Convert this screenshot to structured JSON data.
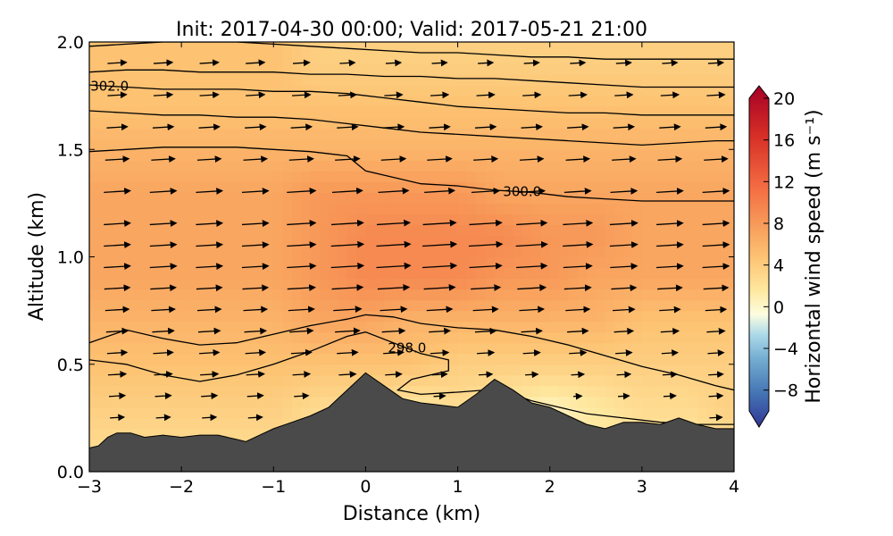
{
  "chart_data": {
    "type": "heatmap",
    "title": "Init: 2017-04-30 00:00; Valid: 2017-05-21 21:00",
    "xlabel": "Distance (km)",
    "ylabel": "Altitude (km)",
    "xlim": [
      -3,
      4
    ],
    "ylim": [
      0.0,
      2.0
    ],
    "x_ticks": [
      "−3",
      "−2",
      "−1",
      "0",
      "1",
      "2",
      "3",
      "4"
    ],
    "x_tick_values": [
      -3,
      -2,
      -1,
      0,
      1,
      2,
      3,
      4
    ],
    "y_ticks": [
      "0.0",
      "0.5",
      "1.0",
      "1.5",
      "2.0"
    ],
    "y_tick_values": [
      0.0,
      0.5,
      1.0,
      1.5,
      2.0
    ],
    "colorbar": {
      "label": "Horizontal wind speed (m s⁻¹)",
      "range": [
        -10,
        20
      ],
      "ticks": [
        "−8",
        "−4",
        "0",
        "4",
        "8",
        "12",
        "16",
        "20"
      ],
      "tick_values": [
        -8,
        -4,
        0,
        4,
        8,
        12,
        16,
        20
      ],
      "extend": "both",
      "colormap": [
        "#313695",
        "#4575b4",
        "#74add1",
        "#abd9e9",
        "#e0f3f8",
        "#ffffbf",
        "#fee090",
        "#fdae61",
        "#f46d43",
        "#d73027",
        "#a50026"
      ]
    },
    "terrain": {
      "x": [
        -3.0,
        -2.9,
        -2.8,
        -2.7,
        -2.55,
        -2.4,
        -2.2,
        -2.0,
        -1.8,
        -1.6,
        -1.4,
        -1.3,
        -1.15,
        -1.0,
        -0.8,
        -0.6,
        -0.4,
        -0.2,
        0.0,
        0.2,
        0.4,
        0.6,
        0.8,
        1.0,
        1.2,
        1.4,
        1.6,
        1.8,
        2.0,
        2.2,
        2.4,
        2.6,
        2.8,
        3.0,
        3.2,
        3.4,
        3.6,
        3.8,
        4.0
      ],
      "altitude": [
        0.11,
        0.12,
        0.16,
        0.18,
        0.18,
        0.16,
        0.17,
        0.16,
        0.17,
        0.17,
        0.15,
        0.14,
        0.17,
        0.2,
        0.23,
        0.26,
        0.3,
        0.38,
        0.46,
        0.4,
        0.34,
        0.32,
        0.31,
        0.3,
        0.36,
        0.43,
        0.38,
        0.32,
        0.3,
        0.26,
        0.22,
        0.2,
        0.23,
        0.23,
        0.22,
        0.25,
        0.22,
        0.2,
        0.2
      ],
      "color": "#4a4a4a"
    },
    "wind_speed_field": {
      "x": [
        -3,
        -2.5,
        -2,
        -1.5,
        -1,
        -0.5,
        0,
        0.5,
        1,
        1.5,
        2,
        2.5,
        3,
        3.5,
        4
      ],
      "altitude": [
        0.1,
        0.3,
        0.5,
        0.7,
        0.9,
        1.1,
        1.3,
        1.5,
        1.7,
        1.9
      ],
      "values": [
        [
          3,
          3,
          3,
          3,
          3,
          3,
          2,
          2,
          2,
          2,
          1,
          2,
          2,
          2,
          3
        ],
        [
          4,
          4,
          4,
          4,
          4,
          3,
          3,
          2,
          3,
          2,
          1,
          2,
          3,
          3,
          4
        ],
        [
          5,
          5,
          5,
          5,
          5,
          5,
          5,
          5,
          4,
          4,
          4,
          4,
          4,
          4,
          4
        ],
        [
          6,
          6,
          6,
          6,
          6,
          7,
          7,
          6,
          6,
          6,
          6,
          6,
          5,
          5,
          5
        ],
        [
          7,
          7,
          7,
          7,
          7,
          8,
          9,
          9,
          9,
          8,
          8,
          7,
          7,
          7,
          7
        ],
        [
          7,
          7,
          7,
          7,
          7,
          8,
          9,
          9,
          9,
          9,
          8,
          8,
          7,
          7,
          7
        ],
        [
          7,
          7,
          7,
          7,
          7,
          8,
          8,
          8,
          8,
          7,
          7,
          7,
          7,
          7,
          7
        ],
        [
          6,
          6,
          6,
          6,
          6,
          6,
          6,
          6,
          6,
          6,
          6,
          6,
          6,
          6,
          6
        ],
        [
          5,
          5,
          5,
          5,
          5,
          5,
          5,
          5,
          5,
          5,
          5,
          5,
          5,
          5,
          5
        ],
        [
          5,
          5,
          5,
          5,
          5,
          4,
          4,
          4,
          4,
          4,
          4,
          4,
          4,
          4,
          4
        ]
      ]
    },
    "contours": [
      {
        "level": 298.0,
        "label": "298.0",
        "x": [
          -3.0,
          -2.6,
          -2.2,
          -1.8,
          -1.4,
          -1.0,
          -0.6,
          -0.2,
          0.0,
          0.3,
          0.6,
          0.9,
          0.9,
          0.5,
          0.35,
          0.6,
          1.0,
          1.3,
          1.6,
          1.8,
          2.1,
          2.4,
          2.8,
          3.2,
          3.6,
          4.0
        ],
        "y": [
          0.52,
          0.5,
          0.45,
          0.42,
          0.45,
          0.5,
          0.56,
          0.63,
          0.65,
          0.6,
          0.55,
          0.52,
          0.47,
          0.43,
          0.38,
          0.36,
          0.37,
          0.38,
          0.36,
          0.33,
          0.3,
          0.27,
          0.25,
          0.23,
          0.22,
          0.22
        ]
      },
      {
        "level": 299.0,
        "label": "",
        "x": [
          -3.0,
          -2.6,
          -2.2,
          -1.8,
          -1.4,
          -1.0,
          -0.6,
          -0.2,
          0.0,
          0.3,
          0.6,
          1.0,
          1.4,
          1.8,
          2.2,
          2.6,
          3.0,
          3.4,
          3.8,
          4.0
        ],
        "y": [
          0.6,
          0.66,
          0.62,
          0.59,
          0.6,
          0.64,
          0.68,
          0.71,
          0.73,
          0.72,
          0.69,
          0.67,
          0.66,
          0.63,
          0.59,
          0.54,
          0.49,
          0.45,
          0.4,
          0.38
        ]
      },
      {
        "level": 300.0,
        "label": "300.0",
        "x": [
          -3.0,
          -2.6,
          -2.2,
          -1.8,
          -1.4,
          -1.0,
          -0.6,
          -0.2,
          0.0,
          0.3,
          0.6,
          1.0,
          1.4,
          1.8,
          2.2,
          2.6,
          3.0,
          3.4,
          3.8,
          4.0
        ],
        "y": [
          1.49,
          1.5,
          1.51,
          1.51,
          1.51,
          1.5,
          1.49,
          1.47,
          1.4,
          1.37,
          1.34,
          1.33,
          1.31,
          1.3,
          1.28,
          1.27,
          1.26,
          1.26,
          1.26,
          1.26
        ]
      },
      {
        "level": 301.0,
        "label": "",
        "x": [
          -3.0,
          -2.6,
          -2.2,
          -1.8,
          -1.4,
          -1.0,
          -0.6,
          -0.2,
          0.2,
          0.6,
          1.0,
          1.4,
          1.8,
          2.2,
          2.6,
          3.0,
          3.4,
          3.8,
          4.0
        ],
        "y": [
          1.68,
          1.67,
          1.66,
          1.66,
          1.65,
          1.65,
          1.64,
          1.62,
          1.6,
          1.58,
          1.57,
          1.56,
          1.55,
          1.54,
          1.53,
          1.52,
          1.53,
          1.54,
          1.54
        ]
      },
      {
        "level": 302.0,
        "label": "302.0",
        "x": [
          -3.0,
          -2.6,
          -2.2,
          -1.8,
          -1.4,
          -1.0,
          -0.6,
          -0.2,
          0.2,
          0.6,
          1.0,
          1.4,
          1.8,
          2.2,
          2.6,
          3.0,
          3.4,
          3.8,
          4.0
        ],
        "y": [
          1.8,
          1.79,
          1.78,
          1.78,
          1.78,
          1.77,
          1.77,
          1.76,
          1.74,
          1.72,
          1.7,
          1.69,
          1.68,
          1.67,
          1.67,
          1.66,
          1.66,
          1.66,
          1.66
        ]
      },
      {
        "level": 303.0,
        "label": "",
        "x": [
          -3.0,
          -2.6,
          -2.2,
          -1.8,
          -1.4,
          -1.0,
          -0.6,
          -0.2,
          0.2,
          0.6,
          1.0,
          1.4,
          1.8,
          2.2,
          2.6,
          3.0,
          3.4,
          3.8,
          4.0
        ],
        "y": [
          1.86,
          1.87,
          1.87,
          1.86,
          1.86,
          1.86,
          1.85,
          1.85,
          1.84,
          1.84,
          1.83,
          1.83,
          1.82,
          1.81,
          1.8,
          1.79,
          1.79,
          1.79,
          1.79
        ]
      },
      {
        "level": 304.0,
        "label": "",
        "x": [
          -3.0,
          -2.6,
          -2.2,
          -1.8,
          -1.4,
          -1.0,
          -0.6,
          -0.2,
          0.2,
          0.6,
          1.0,
          1.4,
          1.8,
          2.2,
          2.6,
          3.0,
          3.4,
          3.8,
          4.0
        ],
        "y": [
          1.98,
          1.99,
          2.0,
          2.0,
          2.0,
          1.99,
          1.98,
          1.97,
          1.96,
          1.95,
          1.95,
          1.94,
          1.93,
          1.93,
          1.92,
          1.92,
          1.92,
          1.92,
          1.92
        ]
      }
    ],
    "vectors": {
      "x": [
        -2.7,
        -2.2,
        -1.7,
        -1.2,
        -0.7,
        -0.2,
        0.3,
        0.8,
        1.3,
        1.8,
        2.3,
        2.8,
        3.3,
        3.8
      ],
      "altitude": [
        0.25,
        0.35,
        0.45,
        0.55,
        0.65,
        0.75,
        0.85,
        0.95,
        1.05,
        1.15,
        1.3,
        1.45,
        1.6,
        1.75,
        1.9
      ],
      "description": "horizontal wind vectors (u component dominant, pointing east)"
    }
  }
}
